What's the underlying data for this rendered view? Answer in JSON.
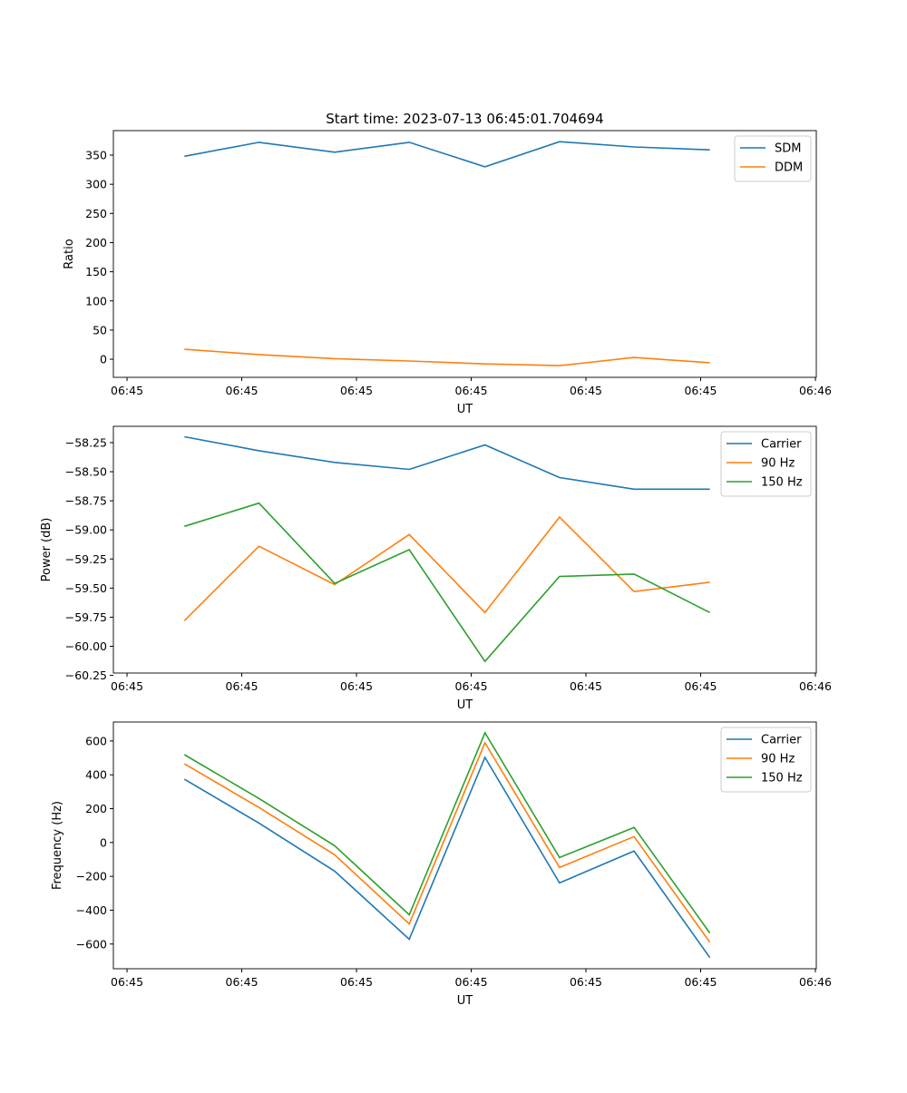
{
  "chart_data": [
    {
      "type": "line",
      "title": "Start time: 2023-07-13 06:45:01.704694",
      "xlabel": "UT",
      "ylabel": "Ratio",
      "x": [
        5.0,
        11.5,
        18.1,
        24.6,
        31.2,
        37.7,
        44.2,
        50.8
      ],
      "xlim": [
        -1.19,
        60.08
      ],
      "xticks": [
        0,
        10,
        20,
        30,
        40,
        50,
        60
      ],
      "xtick_labels": [
        "06:45",
        "06:45",
        "06:45",
        "06:45",
        "06:45",
        "06:45",
        "06:46"
      ],
      "ylim": [
        -31,
        392
      ],
      "yticks": [
        0,
        50,
        100,
        150,
        200,
        250,
        300,
        350
      ],
      "ytick_labels": [
        "0",
        "50",
        "100",
        "150",
        "200",
        "250",
        "300",
        "350"
      ],
      "legend": "top-right",
      "series": [
        {
          "name": "SDM",
          "color": "#1f77b4",
          "values": [
            348,
            372,
            355,
            372,
            330,
            373,
            364,
            359
          ]
        },
        {
          "name": "DDM",
          "color": "#ff7f0e",
          "values": [
            17,
            8,
            1,
            -3,
            -8,
            -11,
            3,
            -6
          ]
        }
      ]
    },
    {
      "type": "line",
      "title": "",
      "xlabel": "UT",
      "ylabel": "Power (dB)",
      "x": [
        5.0,
        11.5,
        18.1,
        24.6,
        31.2,
        37.7,
        44.2,
        50.8
      ],
      "xlim": [
        -1.19,
        60.08
      ],
      "xticks": [
        0,
        10,
        20,
        30,
        40,
        50,
        60
      ],
      "xtick_labels": [
        "06:45",
        "06:45",
        "06:45",
        "06:45",
        "06:45",
        "06:45",
        "06:46"
      ],
      "ylim": [
        -60.23,
        -58.11
      ],
      "yticks": [
        -58.25,
        -58.5,
        -58.75,
        -59.0,
        -59.25,
        -59.5,
        -59.75,
        -60.0,
        -60.25
      ],
      "ytick_labels": [
        "−58.25",
        "−58.50",
        "−58.75",
        "−59.00",
        "−59.25",
        "−59.50",
        "−59.75",
        "−60.00",
        "−60.25"
      ],
      "legend": "top-right",
      "series": [
        {
          "name": "Carrier",
          "color": "#1f77b4",
          "values": [
            -58.2,
            -58.32,
            -58.42,
            -58.48,
            -58.27,
            -58.55,
            -58.65,
            -58.65
          ]
        },
        {
          "name": "90 Hz",
          "color": "#ff7f0e",
          "values": [
            -59.78,
            -59.14,
            -59.47,
            -59.04,
            -59.71,
            -58.89,
            -59.53,
            -59.45
          ]
        },
        {
          "name": "150 Hz",
          "color": "#2ca02c",
          "values": [
            -58.97,
            -58.77,
            -59.46,
            -59.17,
            -60.13,
            -59.4,
            -59.38,
            -59.71
          ]
        }
      ]
    },
    {
      "type": "line",
      "title": "",
      "xlabel": "UT",
      "ylabel": "Frequency (Hz)",
      "x": [
        5.0,
        11.5,
        18.1,
        24.6,
        31.2,
        37.7,
        44.2,
        50.8
      ],
      "xlim": [
        -1.19,
        60.08
      ],
      "xticks": [
        0,
        10,
        20,
        30,
        40,
        50,
        60
      ],
      "xtick_labels": [
        "06:45",
        "06:45",
        "06:45",
        "06:45",
        "06:45",
        "06:45",
        "06:46"
      ],
      "ylim": [
        -746,
        712
      ],
      "yticks": [
        -600,
        -400,
        -200,
        0,
        200,
        400,
        600
      ],
      "ytick_labels": [
        "−600",
        "−400",
        "−200",
        "0",
        "200",
        "400",
        "600"
      ],
      "legend": "top-right",
      "series": [
        {
          "name": "Carrier",
          "color": "#1f77b4",
          "values": [
            374,
            115,
            -169,
            -572,
            503,
            -239,
            -51,
            -680
          ]
        },
        {
          "name": "90 Hz",
          "color": "#ff7f0e",
          "values": [
            465,
            207,
            -73,
            -481,
            589,
            -148,
            35,
            -589
          ]
        },
        {
          "name": "150 Hz",
          "color": "#2ca02c",
          "values": [
            519,
            260,
            -19,
            -427,
            648,
            -89,
            89,
            -535
          ]
        }
      ]
    }
  ]
}
